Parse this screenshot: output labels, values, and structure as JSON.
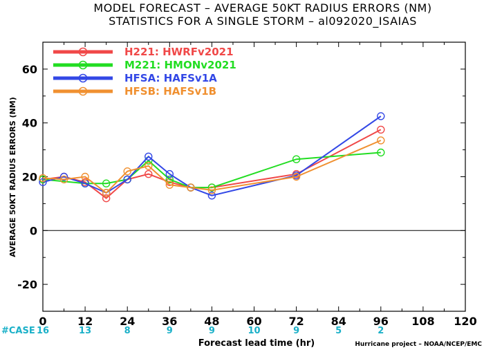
{
  "header": {
    "title_line1": "MODEL FORECAST – AVERAGE 50KT RADIUS ERRORS (NM)",
    "title_line2": "STATISTICS FOR A SINGLE STORM – al092020_ISAIAS"
  },
  "footer": {
    "case_label": "#CASE",
    "credit": "Hurricane project – NOAA/NCEP/EMC"
  },
  "chart_data": {
    "type": "line",
    "title": "MODEL FORECAST – AVERAGE 50KT RADIUS ERRORS (NM)",
    "subtitle": "STATISTICS FOR A SINGLE STORM – al092020_ISAIAS",
    "xlabel": "Forecast lead time (hr)",
    "ylabel": "AVERAGE 50KT RADIUS ERRORS (NM)",
    "xlim": [
      0,
      120
    ],
    "ylim": [
      -30,
      70
    ],
    "xticks": [
      0,
      12,
      24,
      36,
      48,
      60,
      72,
      84,
      96,
      108,
      120
    ],
    "yticks": [
      -20,
      0,
      20,
      40,
      60
    ],
    "zero_line": true,
    "legend_position": "top-left",
    "cases": {
      "x": [
        0,
        12,
        24,
        36,
        48,
        60,
        72,
        84,
        96
      ],
      "counts": [
        "16",
        "13",
        "8",
        "9",
        "9",
        "10",
        "9",
        "5",
        "2"
      ]
    },
    "series": [
      {
        "name": "H221",
        "description": "HWRFv2021",
        "color": "#f04848",
        "x": [
          0,
          6,
          12,
          18,
          24,
          30,
          36,
          42,
          48,
          72,
          96
        ],
        "values": [
          19,
          20,
          18,
          12,
          19,
          21,
          18,
          16,
          16,
          21,
          37.5
        ]
      },
      {
        "name": "M221",
        "description": "HMONv2021",
        "color": "#22dd22",
        "x": [
          0,
          12,
          18,
          24,
          30,
          36,
          42,
          48,
          72,
          96
        ],
        "values": [
          19,
          17.5,
          17.5,
          19,
          26,
          19,
          16,
          16,
          26.5,
          29
        ]
      },
      {
        "name": "HFSA",
        "description": "HAFSv1A",
        "color": "#3348e6",
        "x": [
          0,
          6,
          12,
          18,
          24,
          30,
          36,
          42,
          48,
          72,
          96
        ],
        "values": [
          18,
          20,
          17.5,
          14,
          19,
          27.5,
          21,
          16,
          13,
          20.5,
          42.5
        ]
      },
      {
        "name": "HFSB",
        "description": "HAFSv1B",
        "color": "#f09030",
        "x": [
          0,
          6,
          12,
          18,
          24,
          30,
          36,
          42,
          48,
          72,
          96
        ],
        "values": [
          19.5,
          19,
          20,
          14,
          22,
          24,
          17,
          16,
          15,
          20,
          33.5
        ]
      }
    ]
  }
}
